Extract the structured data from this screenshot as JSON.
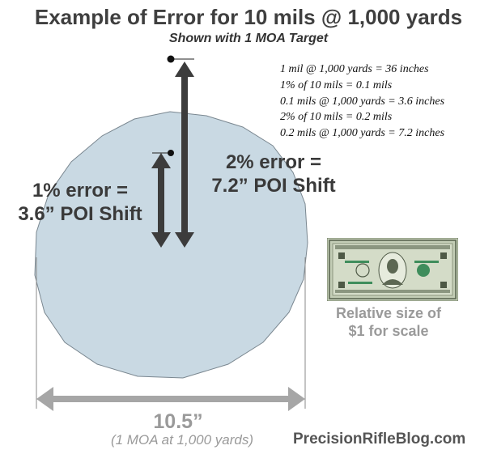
{
  "title": "Example of Error for 10 mils @ 1,000 yards",
  "subtitle": "Shown with 1 MOA Target",
  "calc_notes": [
    "1 mil @ 1,000 yards = 36 inches",
    "1% of 10 mils = 0.1 mils",
    "0.1 mils @ 1,000 yards = 3.6 inches",
    "2% of 10 mils = 0.2 mils",
    "0.2 mils @ 1,000 yards = 7.2 inches"
  ],
  "callouts": {
    "one_percent": {
      "line1": "1% error =",
      "line2": "3.6” POI Shift"
    },
    "two_percent": {
      "line1": "2% error =",
      "line2": "7.2” POI Shift"
    }
  },
  "target": {
    "diameter_label": "10.5”",
    "diameter_sublabel": "(1 MOA at 1,000 yards)",
    "fill_color": "#c9d9e3"
  },
  "dollar_caption": {
    "line1": "Relative size of",
    "line2": "$1 for scale"
  },
  "brand": "PrecisionRifleBlog.com",
  "colors": {
    "arrow": "#3c3c3c",
    "dimension": "#a6a6a6",
    "dollar": "#b9c4ad"
  }
}
